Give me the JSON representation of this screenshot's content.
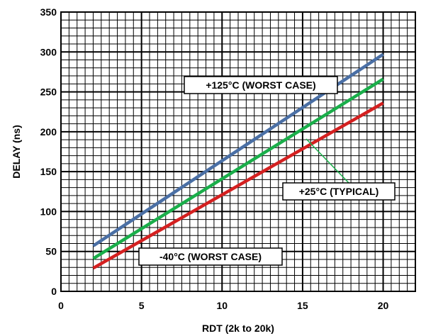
{
  "chart_data": {
    "type": "line",
    "title": "",
    "xlabel": "RDT (2k to 20k)",
    "ylabel": "DELAY (ns)",
    "xlim": [
      0,
      22
    ],
    "ylim": [
      0,
      350
    ],
    "x_ticks": [
      0,
      5,
      10,
      15,
      20
    ],
    "y_ticks": [
      0,
      50,
      100,
      150,
      200,
      250,
      300,
      350
    ],
    "grid": true,
    "series": [
      {
        "color": "#4a6fa5",
        "x": [
          2,
          20
        ],
        "y": [
          57,
          297
        ]
      },
      {
        "color": "#1aae4a",
        "x": [
          2,
          20
        ],
        "y": [
          41,
          266
        ]
      },
      {
        "color": "#d42020",
        "x": [
          2,
          20
        ],
        "y": [
          29,
          236
        ]
      }
    ],
    "annotations": [
      {
        "text": "+125°C (WORST CASE)"
      },
      {
        "text": "+25°C (TYPICAL)"
      },
      {
        "text": "-40°C (WORST CASE)"
      }
    ]
  }
}
